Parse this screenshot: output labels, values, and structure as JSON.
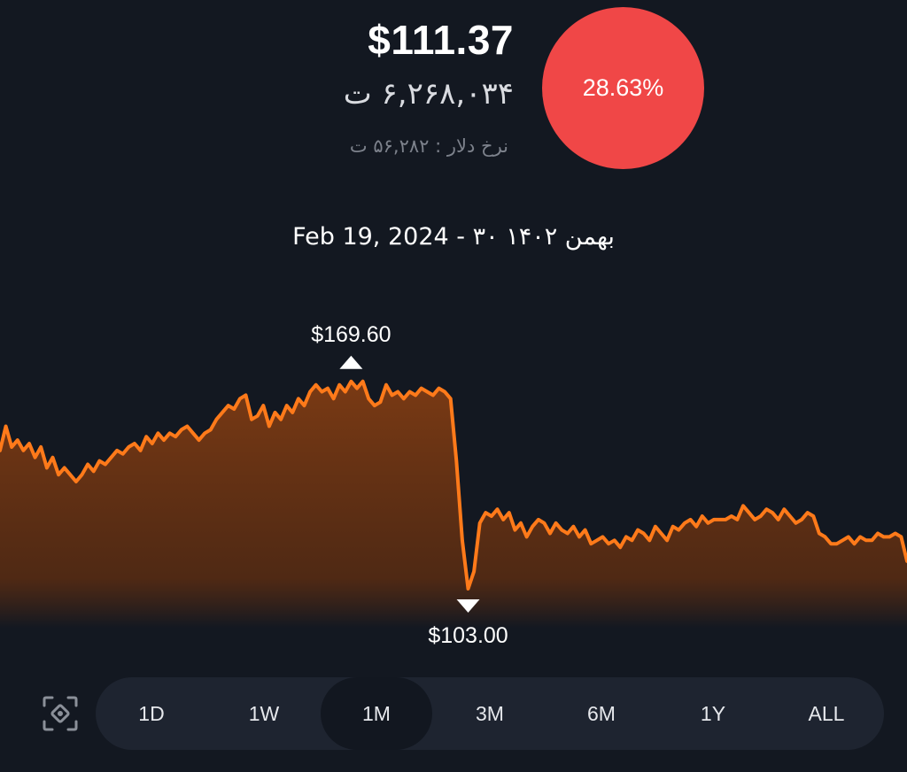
{
  "header": {
    "price_usd": "$111.37",
    "price_toman": "۶,۲۶۸,۰۳۴ ت",
    "dollar_rate": "نرخ دلار : ۵۶,۲۸۲ ت",
    "change_percent": "28.63%",
    "change_color": "#f04747"
  },
  "date_line": "Feb 19, 2024 - ۳۰ بهمن ۱۴۰۲",
  "chart_data": {
    "type": "area",
    "line_color": "#ff7a1a",
    "fill_color": "#7a3a14",
    "high_label": "$169.60",
    "low_label": "$103.00",
    "high": 169.6,
    "low": 103.0,
    "y": [
      143,
      150,
      144,
      146,
      143,
      145,
      141,
      144,
      138,
      141,
      136,
      138,
      136,
      134,
      136,
      139,
      137,
      140,
      139,
      141,
      143,
      142,
      144,
      145,
      143,
      147,
      145,
      148,
      146,
      148,
      147,
      149,
      150,
      148,
      146,
      148,
      149,
      152,
      154,
      156,
      155,
      158,
      159,
      152,
      153,
      156,
      150,
      154,
      152,
      156,
      154,
      158,
      156,
      160,
      162,
      160,
      161,
      158,
      162,
      160,
      163,
      161,
      163,
      158,
      156,
      157,
      162,
      159,
      160,
      158,
      160,
      159,
      161,
      160,
      159,
      161,
      160,
      158,
      140,
      117,
      103,
      108,
      122,
      125,
      124,
      126,
      123,
      125,
      120,
      122,
      118,
      121,
      123,
      122,
      119,
      122,
      120,
      119,
      121,
      118,
      120,
      116,
      117,
      118,
      116,
      117,
      115,
      118,
      117,
      120,
      119,
      117,
      121,
      119,
      117,
      121,
      120,
      122,
      123,
      121,
      124,
      122,
      123,
      123,
      123,
      124,
      123,
      127,
      125,
      123,
      124,
      126,
      125,
      123,
      126,
      124,
      122,
      123,
      125,
      124,
      119,
      118,
      116,
      116,
      117,
      118,
      116,
      118,
      117,
      117,
      119,
      118,
      118,
      119,
      118,
      111
    ]
  },
  "timeframes": {
    "buttons": [
      "1D",
      "1W",
      "1M",
      "3M",
      "6M",
      "1Y",
      "ALL"
    ],
    "selected": "1M"
  },
  "icons": {
    "focus": "focus-target-icon"
  }
}
